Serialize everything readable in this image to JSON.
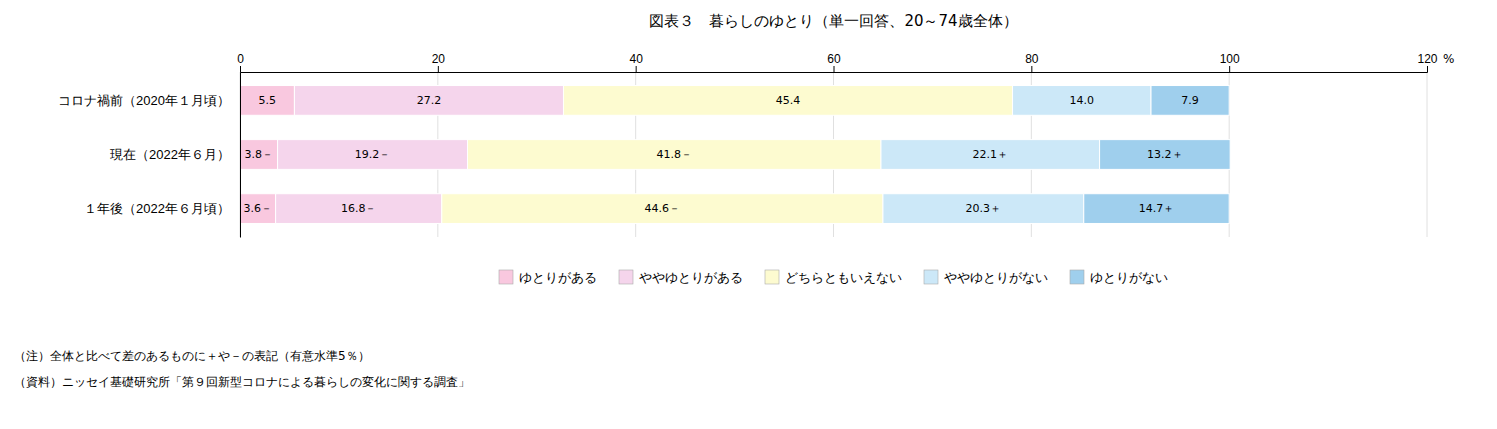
{
  "chart_data": {
    "type": "bar",
    "orientation": "horizontal",
    "stacked": true,
    "title": "図表３　暮らしのゆとり（単一回答、20～74歳全体）",
    "categories": [
      "コロナ禍前（2020年１月頃）",
      "現在（2022年６月）",
      "１年後（2022年６月頃）"
    ],
    "series": [
      {
        "name": "ゆとりがある",
        "color": "#f9c8df",
        "values": [
          5.5,
          3.8,
          3.6
        ],
        "value_labels": [
          "5.5",
          "3.8－",
          "3.6－"
        ]
      },
      {
        "name": "ややゆとりがある",
        "color": "#f5d5ec",
        "values": [
          27.2,
          19.2,
          16.8
        ],
        "value_labels": [
          "27.2",
          "19.2－",
          "16.8－"
        ]
      },
      {
        "name": "どちらともいえない",
        "color": "#fdfbd0",
        "values": [
          45.4,
          41.8,
          44.6
        ],
        "value_labels": [
          "45.4",
          "41.8－",
          "44.6－"
        ]
      },
      {
        "name": "ややゆとりがない",
        "color": "#cce8f8",
        "values": [
          14.0,
          22.1,
          20.3
        ],
        "value_labels": [
          "14.0",
          "22.1＋",
          "20.3＋"
        ]
      },
      {
        "name": "ゆとりがない",
        "color": "#9fcfed",
        "values": [
          7.9,
          13.2,
          14.7
        ],
        "value_labels": [
          "7.9",
          "13.2＋",
          "14.7＋"
        ]
      }
    ],
    "xlim": [
      0,
      120
    ],
    "xticks": [
      0,
      20,
      40,
      60,
      80,
      100,
      120
    ],
    "x_label": "%",
    "grid": true,
    "data_labels": true,
    "legend": "bottom",
    "annotations": [
      "（注）全体と比べて差のあるものに＋や－の表記（有意水準5％）",
      "（資料）ニッセイ基礎研究所「第９回新型コロナによる暮らしの変化に関する調査」"
    ]
  }
}
